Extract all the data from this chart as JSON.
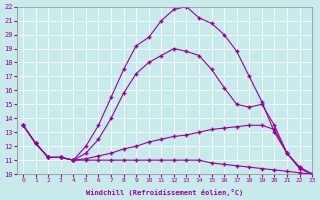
{
  "bg_color": "#c8eaea",
  "line_color": "#990099",
  "xlim": [
    -0.5,
    23
  ],
  "ylim": [
    10,
    22
  ],
  "xlabel": "Windchill (Refroidissement éolien,°C)",
  "xticks": [
    0,
    1,
    2,
    3,
    4,
    5,
    6,
    7,
    8,
    9,
    10,
    11,
    12,
    13,
    14,
    15,
    16,
    17,
    18,
    19,
    20,
    21,
    22,
    23
  ],
  "yticks": [
    10,
    11,
    12,
    13,
    14,
    15,
    16,
    17,
    18,
    19,
    20,
    21,
    22
  ],
  "line1_x": [
    0,
    1,
    2,
    3,
    4,
    5,
    6,
    7,
    8,
    9,
    10,
    11,
    12,
    13,
    14,
    15,
    16,
    17,
    18,
    19,
    20,
    21,
    22,
    23
  ],
  "line1_y": [
    13.5,
    12.2,
    11.2,
    11.2,
    11.0,
    12.0,
    13.5,
    15.5,
    17.5,
    19.2,
    19.8,
    21.0,
    21.8,
    22.0,
    21.2,
    20.8,
    20.0,
    18.8,
    17.0,
    15.2,
    13.0,
    11.5,
    10.4,
    10.0
  ],
  "line2_x": [
    0,
    1,
    2,
    3,
    4,
    5,
    6,
    7,
    8,
    9,
    10,
    11,
    12,
    13,
    14,
    15,
    16,
    17,
    18,
    19,
    20,
    21,
    22,
    23
  ],
  "line2_y": [
    13.5,
    12.2,
    11.2,
    11.2,
    11.0,
    11.5,
    12.5,
    14.0,
    15.8,
    17.2,
    18.0,
    18.5,
    19.0,
    18.8,
    18.5,
    17.5,
    16.2,
    15.0,
    14.8,
    15.0,
    13.5,
    11.5,
    10.5,
    10.0
  ],
  "line3_x": [
    0,
    1,
    2,
    3,
    4,
    5,
    6,
    7,
    8,
    9,
    10,
    11,
    12,
    13,
    14,
    15,
    16,
    17,
    18,
    19,
    20,
    21,
    22,
    23
  ],
  "line3_y": [
    13.5,
    12.2,
    11.2,
    11.2,
    11.0,
    11.1,
    11.3,
    11.5,
    11.8,
    12.0,
    12.3,
    12.5,
    12.7,
    12.8,
    13.0,
    13.2,
    13.3,
    13.4,
    13.5,
    13.5,
    13.2,
    11.5,
    10.5,
    10.0
  ],
  "line4_x": [
    0,
    1,
    2,
    3,
    4,
    5,
    6,
    7,
    8,
    9,
    10,
    11,
    12,
    13,
    14,
    15,
    16,
    17,
    18,
    19,
    20,
    21,
    22,
    23
  ],
  "line4_y": [
    13.5,
    12.2,
    11.2,
    11.2,
    11.0,
    11.0,
    11.0,
    11.0,
    11.0,
    11.0,
    11.0,
    11.0,
    11.0,
    11.0,
    11.0,
    10.8,
    10.7,
    10.6,
    10.5,
    10.4,
    10.3,
    10.2,
    10.1,
    10.0
  ]
}
